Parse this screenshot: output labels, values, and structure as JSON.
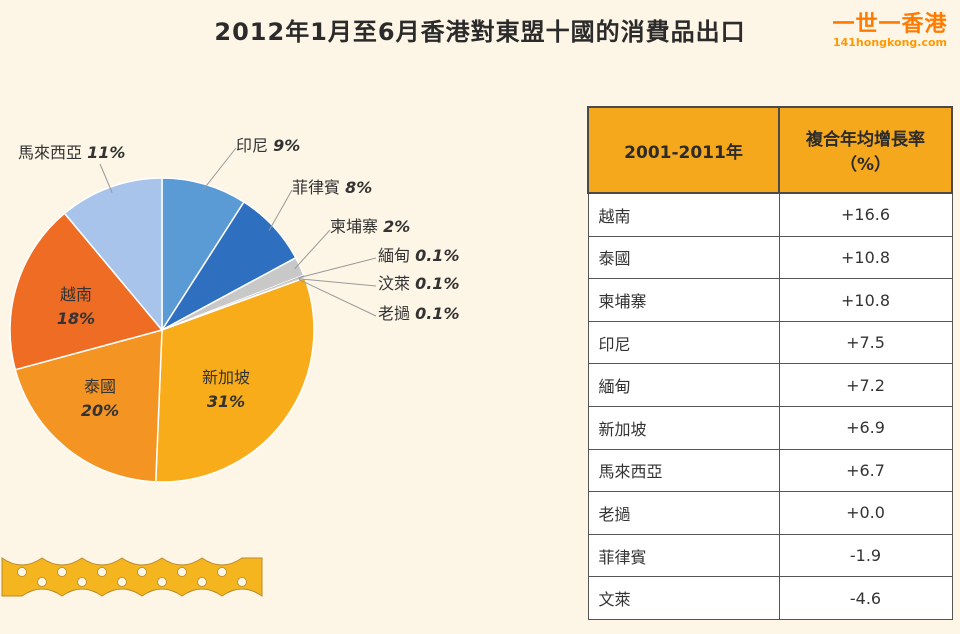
{
  "title": "2012年1月至6月香港對東盟十國的消費品出口",
  "watermark": {
    "main": "一世一香港",
    "sub": "141hongkong.com"
  },
  "chart_data": {
    "type": "pie",
    "title": "2012年1月至6月香港對東盟十國的消費品出口",
    "slices": [
      {
        "label": "印尼",
        "value": 9,
        "pct_text": "9%",
        "color": "#5b9bd5"
      },
      {
        "label": "菲律賓",
        "value": 8,
        "pct_text": "8%",
        "color": "#2e6fbf"
      },
      {
        "label": "柬埔寨",
        "value": 2,
        "pct_text": "2%",
        "color": "#c8c8c8"
      },
      {
        "label": "緬甸",
        "value": 0.1,
        "pct_text": "0.1%",
        "color": "#8a8a8a"
      },
      {
        "label": "汶萊",
        "value": 0.1,
        "pct_text": "0.1%",
        "color": "#b0b0b0"
      },
      {
        "label": "老撾",
        "value": 0.1,
        "pct_text": "0.1%",
        "color": "#a06030"
      },
      {
        "label": "新加坡",
        "value": 31,
        "pct_text": "31%",
        "color": "#f8ac1a"
      },
      {
        "label": "泰國",
        "value": 20,
        "pct_text": "20%",
        "color": "#f39423"
      },
      {
        "label": "越南",
        "value": 18,
        "pct_text": "18%",
        "color": "#ee6c24"
      },
      {
        "label": "馬來西亞",
        "value": 11,
        "pct_text": "11%",
        "color": "#a8c4ea"
      }
    ]
  },
  "table": {
    "header": {
      "col1": "2001-2011年",
      "col2_line1": "複合年均增長率",
      "col2_line2": "（%）"
    },
    "rows": [
      {
        "country": "越南",
        "value": "+16.6"
      },
      {
        "country": "泰國",
        "value": "+10.8"
      },
      {
        "country": "柬埔寨",
        "value": "+10.8"
      },
      {
        "country": "印尼",
        "value": "+7.5"
      },
      {
        "country": "緬甸",
        "value": "+7.2"
      },
      {
        "country": "新加坡",
        "value": "+6.9"
      },
      {
        "country": "馬來西亞",
        "value": "+6.7"
      },
      {
        "country": "老撾",
        "value": "+0.0"
      },
      {
        "country": "菲律賓",
        "value": "-1.9"
      },
      {
        "country": "文萊",
        "value": "-4.6"
      }
    ]
  }
}
